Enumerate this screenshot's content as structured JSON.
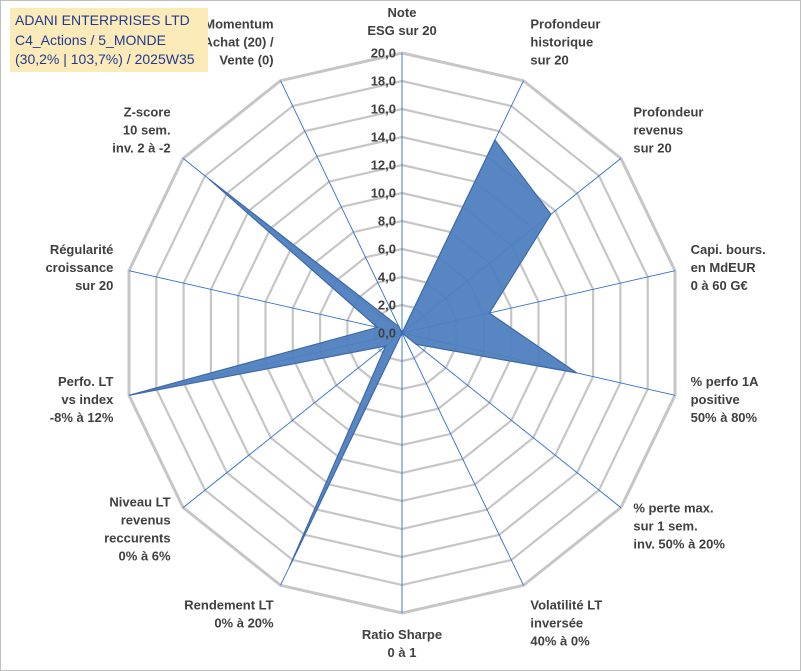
{
  "header": {
    "line1": "ADANI ENTERPRISES LTD",
    "line2": "C4_Actions / 5_MONDE",
    "line3": "(30,2% | 103,7%) / 2025W35"
  },
  "chart_data": {
    "type": "radar",
    "max": 20,
    "min": 0,
    "step": 2,
    "tick_labels": [
      "0,0",
      "2,0",
      "4,0",
      "6,0",
      "8,0",
      "10,0",
      "12,0",
      "14,0",
      "16,0",
      "18,0",
      "20,0"
    ],
    "axes": [
      [
        "Note",
        "ESG sur 20"
      ],
      [
        "Profondeur",
        "historique",
        "sur 20"
      ],
      [
        "Profondeur",
        "revenus",
        "sur 20"
      ],
      [
        "Capi. bours.",
        "en MdEUR",
        "0 à 60 G€"
      ],
      [
        "% perfo 1A",
        "positive",
        "50% à 80%"
      ],
      [
        "% perte max.",
        "sur 1 sem.",
        "inv. 50% à 20%"
      ],
      [
        "Volatilité LT",
        "inversée",
        "40% à 0%"
      ],
      [
        "Ratio Sharpe",
        "0 à 1"
      ],
      [
        "Rendement LT",
        "0% à 20%"
      ],
      [
        "Niveau LT",
        "revenus",
        "reccurents",
        "0% à 6%"
      ],
      [
        "Perfo. LT",
        "vs index",
        "-8% à 12%"
      ],
      [
        "Régularité",
        "croissance",
        "sur 20"
      ],
      [
        "Z-score",
        "10 sem.",
        "inv. 2 à -2"
      ],
      [
        "Momentum",
        "Achat (20) /",
        "Vente (0)"
      ]
    ],
    "values": [
      0,
      15.3,
      13.6,
      6.4,
      12.8,
      1.3,
      0,
      0,
      18.5,
      1.5,
      20,
      1.8,
      17.6,
      0.5
    ],
    "colors": {
      "fill": "#4f7fbf",
      "stroke": "#3d6aa8",
      "grid": "#c6c6c6",
      "spoke": "#2e6fd1"
    }
  }
}
